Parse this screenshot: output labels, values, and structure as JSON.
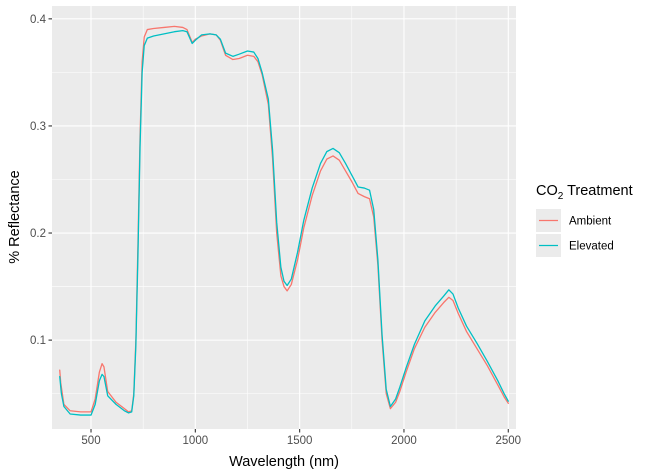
{
  "chart_data": {
    "type": "line",
    "xlabel": "Wavelength (nm)",
    "ylabel": "% Reflectance",
    "xlim": [
      313,
      2537
    ],
    "ylim": [
      0.017,
      0.412
    ],
    "xticks": [
      500,
      1000,
      1500,
      2000,
      2500
    ],
    "xtick_labels": [
      "500",
      "1000",
      "1500",
      "2000",
      "2500"
    ],
    "yticks": [
      0.1,
      0.2,
      0.3,
      0.4
    ],
    "ytick_labels": [
      "0.1",
      "0.2",
      "0.3",
      "0.4"
    ],
    "grid": true,
    "legend": {
      "title_main": "CO",
      "title_sub": "2",
      "title_rest": " Treatment",
      "placement": "right"
    },
    "series": [
      {
        "name": "Ambient",
        "color": "#F8766D",
        "points": [
          [
            350,
            0.072
          ],
          [
            355,
            0.06
          ],
          [
            370,
            0.04
          ],
          [
            400,
            0.034
          ],
          [
            450,
            0.033
          ],
          [
            500,
            0.033
          ],
          [
            520,
            0.045
          ],
          [
            540,
            0.07
          ],
          [
            553,
            0.078
          ],
          [
            562,
            0.075
          ],
          [
            580,
            0.052
          ],
          [
            620,
            0.042
          ],
          [
            660,
            0.036
          ],
          [
            680,
            0.033
          ],
          [
            695,
            0.034
          ],
          [
            705,
            0.05
          ],
          [
            715,
            0.1
          ],
          [
            725,
            0.19
          ],
          [
            735,
            0.29
          ],
          [
            745,
            0.36
          ],
          [
            755,
            0.383
          ],
          [
            770,
            0.39
          ],
          [
            800,
            0.391
          ],
          [
            850,
            0.392
          ],
          [
            900,
            0.393
          ],
          [
            940,
            0.392
          ],
          [
            960,
            0.39
          ],
          [
            985,
            0.378
          ],
          [
            1000,
            0.381
          ],
          [
            1030,
            0.384
          ],
          [
            1070,
            0.386
          ],
          [
            1100,
            0.385
          ],
          [
            1120,
            0.38
          ],
          [
            1145,
            0.366
          ],
          [
            1180,
            0.362
          ],
          [
            1210,
            0.363
          ],
          [
            1250,
            0.366
          ],
          [
            1280,
            0.365
          ],
          [
            1300,
            0.36
          ],
          [
            1320,
            0.348
          ],
          [
            1350,
            0.32
          ],
          [
            1370,
            0.27
          ],
          [
            1390,
            0.2
          ],
          [
            1410,
            0.16
          ],
          [
            1425,
            0.15
          ],
          [
            1440,
            0.146
          ],
          [
            1460,
            0.152
          ],
          [
            1490,
            0.175
          ],
          [
            1520,
            0.205
          ],
          [
            1560,
            0.235
          ],
          [
            1600,
            0.258
          ],
          [
            1630,
            0.269
          ],
          [
            1660,
            0.272
          ],
          [
            1690,
            0.268
          ],
          [
            1720,
            0.258
          ],
          [
            1750,
            0.248
          ],
          [
            1780,
            0.237
          ],
          [
            1810,
            0.234
          ],
          [
            1835,
            0.232
          ],
          [
            1855,
            0.215
          ],
          [
            1875,
            0.17
          ],
          [
            1895,
            0.1
          ],
          [
            1915,
            0.05
          ],
          [
            1935,
            0.036
          ],
          [
            1960,
            0.042
          ],
          [
            1980,
            0.052
          ],
          [
            2010,
            0.07
          ],
          [
            2050,
            0.092
          ],
          [
            2100,
            0.112
          ],
          [
            2150,
            0.126
          ],
          [
            2190,
            0.135
          ],
          [
            2215,
            0.14
          ],
          [
            2235,
            0.137
          ],
          [
            2260,
            0.125
          ],
          [
            2300,
            0.108
          ],
          [
            2350,
            0.092
          ],
          [
            2400,
            0.076
          ],
          [
            2450,
            0.058
          ],
          [
            2480,
            0.047
          ],
          [
            2500,
            0.041
          ]
        ]
      },
      {
        "name": "Elevated",
        "color": "#00BFC4",
        "points": [
          [
            350,
            0.066
          ],
          [
            358,
            0.05
          ],
          [
            370,
            0.038
          ],
          [
            400,
            0.031
          ],
          [
            450,
            0.03
          ],
          [
            500,
            0.03
          ],
          [
            520,
            0.04
          ],
          [
            540,
            0.062
          ],
          [
            553,
            0.068
          ],
          [
            562,
            0.066
          ],
          [
            580,
            0.048
          ],
          [
            620,
            0.04
          ],
          [
            660,
            0.034
          ],
          [
            680,
            0.032
          ],
          [
            695,
            0.033
          ],
          [
            705,
            0.048
          ],
          [
            715,
            0.095
          ],
          [
            725,
            0.18
          ],
          [
            735,
            0.28
          ],
          [
            745,
            0.35
          ],
          [
            755,
            0.375
          ],
          [
            770,
            0.382
          ],
          [
            800,
            0.384
          ],
          [
            850,
            0.386
          ],
          [
            900,
            0.388
          ],
          [
            940,
            0.389
          ],
          [
            960,
            0.388
          ],
          [
            985,
            0.377
          ],
          [
            1000,
            0.38
          ],
          [
            1030,
            0.385
          ],
          [
            1070,
            0.386
          ],
          [
            1100,
            0.385
          ],
          [
            1120,
            0.381
          ],
          [
            1145,
            0.368
          ],
          [
            1180,
            0.365
          ],
          [
            1210,
            0.367
          ],
          [
            1250,
            0.37
          ],
          [
            1280,
            0.369
          ],
          [
            1300,
            0.363
          ],
          [
            1320,
            0.35
          ],
          [
            1350,
            0.325
          ],
          [
            1370,
            0.278
          ],
          [
            1390,
            0.21
          ],
          [
            1410,
            0.168
          ],
          [
            1425,
            0.155
          ],
          [
            1440,
            0.151
          ],
          [
            1460,
            0.157
          ],
          [
            1490,
            0.182
          ],
          [
            1520,
            0.212
          ],
          [
            1560,
            0.242
          ],
          [
            1600,
            0.265
          ],
          [
            1630,
            0.276
          ],
          [
            1660,
            0.279
          ],
          [
            1690,
            0.275
          ],
          [
            1720,
            0.265
          ],
          [
            1750,
            0.254
          ],
          [
            1780,
            0.243
          ],
          [
            1810,
            0.242
          ],
          [
            1835,
            0.24
          ],
          [
            1855,
            0.222
          ],
          [
            1875,
            0.175
          ],
          [
            1895,
            0.105
          ],
          [
            1915,
            0.054
          ],
          [
            1935,
            0.038
          ],
          [
            1960,
            0.045
          ],
          [
            1980,
            0.056
          ],
          [
            2010,
            0.074
          ],
          [
            2050,
            0.096
          ],
          [
            2100,
            0.118
          ],
          [
            2150,
            0.132
          ],
          [
            2190,
            0.141
          ],
          [
            2215,
            0.147
          ],
          [
            2235,
            0.143
          ],
          [
            2260,
            0.13
          ],
          [
            2300,
            0.113
          ],
          [
            2350,
            0.097
          ],
          [
            2400,
            0.08
          ],
          [
            2450,
            0.062
          ],
          [
            2480,
            0.05
          ],
          [
            2500,
            0.043
          ]
        ]
      }
    ]
  }
}
